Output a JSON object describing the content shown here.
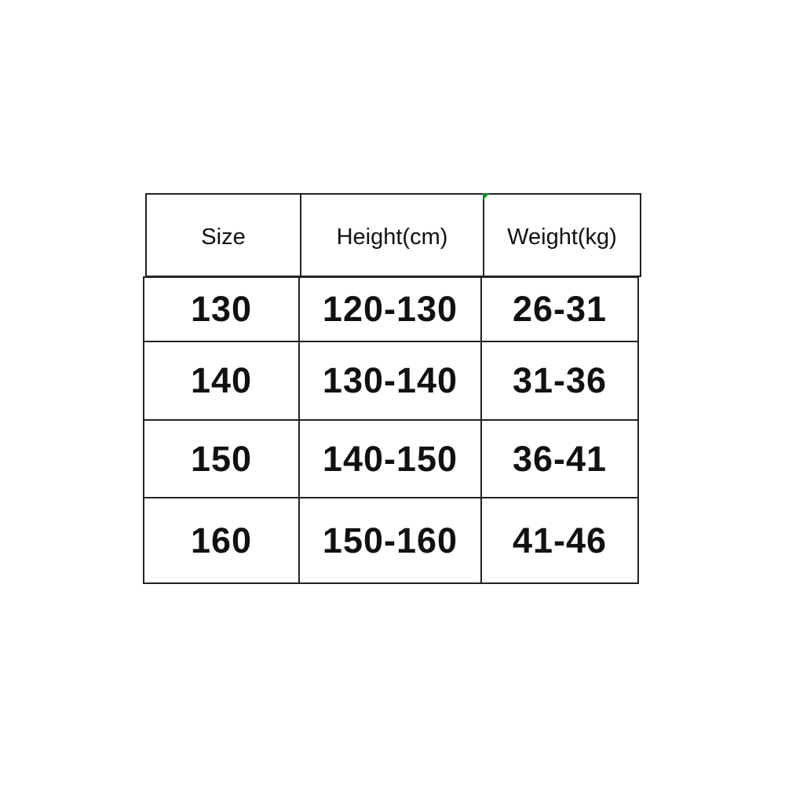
{
  "table": {
    "headers": [
      "Size",
      "Height(cm)",
      "Weight(kg)"
    ],
    "rows": [
      [
        "130",
        "120-130",
        "26-31"
      ],
      [
        "140",
        "130-140",
        "31-36"
      ],
      [
        "150",
        "140-150",
        "36-41"
      ],
      [
        "160",
        "150-160",
        "41-46"
      ]
    ]
  },
  "colors": {
    "border": "#222222",
    "corner_mark": "#1a8a2a"
  }
}
